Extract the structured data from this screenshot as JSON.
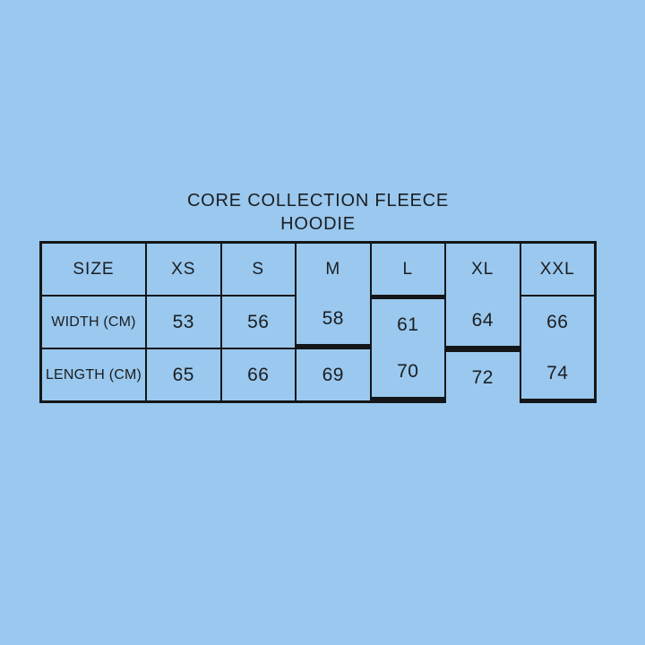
{
  "page": {
    "background_color": "#9ac8ee",
    "text_color": "#1b1e22",
    "border_color": "#141619"
  },
  "title": {
    "line1": "CORE COLLECTION FLEECE",
    "line2": "HOODIE"
  },
  "chart_data": {
    "type": "table",
    "title": "CORE COLLECTION FLEECE HOODIE",
    "columns": [
      "SIZE",
      "XS",
      "S",
      "M",
      "L",
      "XL",
      "XXL"
    ],
    "rows": [
      {
        "label": "WIDTH (CM)",
        "values": [
          "53",
          "56",
          "58",
          "61",
          "64",
          "66"
        ]
      },
      {
        "label": "LENGTH (CM)",
        "values": [
          "65",
          "66",
          "69",
          "70",
          "72",
          "74"
        ]
      }
    ]
  }
}
